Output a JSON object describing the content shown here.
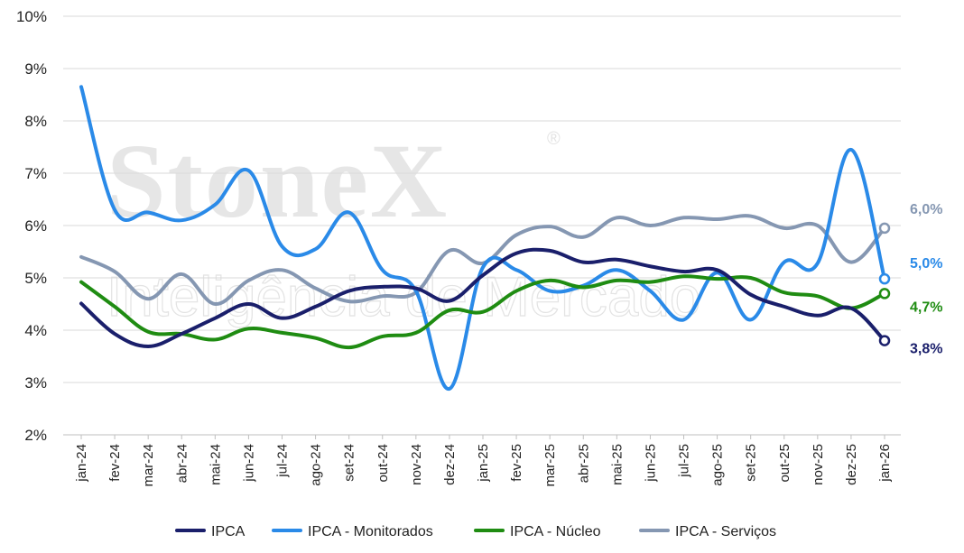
{
  "watermark": {
    "brand": "StoneX",
    "registered": "®",
    "tagline": "Inteligência de Mercado"
  },
  "chart_data": {
    "type": "line",
    "title": "",
    "xlabel": "",
    "ylabel": "",
    "ylim": [
      2,
      10
    ],
    "y_ticks": [
      "2%",
      "3%",
      "4%",
      "5%",
      "6%",
      "7%",
      "8%",
      "9%",
      "10%"
    ],
    "grid": "horizontal",
    "legend_position": "bottom",
    "categories": [
      "jan-24",
      "fev-24",
      "mar-24",
      "abr-24",
      "mai-24",
      "jun-24",
      "jul-24",
      "ago-24",
      "set-24",
      "out-24",
      "nov-24",
      "dez-24",
      "jan-25",
      "fev-25",
      "mar-25",
      "abr-25",
      "mai-25",
      "jun-25",
      "jul-25",
      "ago-25",
      "set-25",
      "out-25",
      "nov-25",
      "dez-25",
      "jan-26"
    ],
    "series": [
      {
        "name": "IPCA",
        "color": "#1a1f6b",
        "values": [
          4.51,
          3.93,
          3.69,
          3.93,
          4.23,
          4.5,
          4.23,
          4.45,
          4.75,
          4.83,
          4.8,
          4.56,
          5.05,
          5.47,
          5.52,
          5.3,
          5.35,
          5.22,
          5.12,
          5.15,
          4.68,
          4.45,
          4.28,
          4.42,
          3.8
        ],
        "end_label": "3,8%"
      },
      {
        "name": "IPCA - Monitorados",
        "color": "#2a8ae8",
        "values": [
          8.65,
          6.3,
          6.25,
          6.1,
          6.4,
          7.05,
          5.6,
          5.55,
          6.25,
          5.15,
          4.75,
          2.88,
          5.2,
          5.15,
          4.75,
          4.85,
          5.15,
          4.75,
          4.2,
          5.1,
          4.2,
          5.3,
          5.28,
          7.45,
          4.98
        ],
        "end_label": "5,0%"
      },
      {
        "name": "IPCA - Núcleo",
        "color": "#1f8c12",
        "values": [
          4.92,
          4.45,
          3.97,
          3.93,
          3.82,
          4.03,
          3.95,
          3.85,
          3.67,
          3.88,
          3.95,
          4.38,
          4.35,
          4.75,
          4.95,
          4.82,
          4.95,
          4.92,
          5.03,
          4.98,
          5.0,
          4.72,
          4.65,
          4.42,
          4.7
        ],
        "end_label": "4,7%"
      },
      {
        "name": "IPCA - Serviços",
        "color": "#8597b2",
        "values": [
          5.4,
          5.12,
          4.6,
          5.07,
          4.5,
          4.95,
          5.15,
          4.8,
          4.55,
          4.65,
          4.72,
          5.52,
          5.28,
          5.82,
          5.98,
          5.78,
          6.15,
          6.0,
          6.15,
          6.12,
          6.18,
          5.95,
          6.0,
          5.3,
          5.95
        ],
        "end_label": "6,0%"
      }
    ]
  }
}
